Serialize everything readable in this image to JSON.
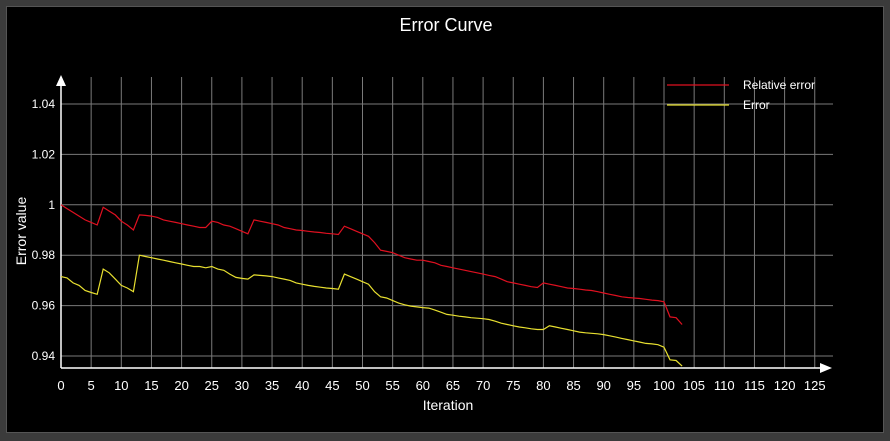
{
  "chart_data": {
    "type": "line",
    "title": "Error Curve",
    "xlabel": "Iteration",
    "ylabel": "Error value",
    "xlim": [
      0,
      128
    ],
    "ylim": [
      0.935,
      1.045
    ],
    "x_ticks": [
      "0",
      "5",
      "10",
      "15",
      "20",
      "25",
      "30",
      "35",
      "40",
      "45",
      "50",
      "55",
      "60",
      "65",
      "70",
      "75",
      "80",
      "85",
      "90",
      "95",
      "100",
      "105",
      "110",
      "115",
      "120",
      "125"
    ],
    "y_ticks": [
      "0.94",
      "0.96",
      "0.98",
      "1",
      "1.02",
      "1.04"
    ],
    "grid": true,
    "legend_position": "top-right",
    "series": [
      {
        "name": "Relative error",
        "color": "#e01020",
        "x": [
          0,
          1,
          2,
          3,
          4,
          5,
          6,
          7,
          8,
          9,
          10,
          11,
          12,
          13,
          14,
          15,
          16,
          17,
          18,
          19,
          20,
          21,
          22,
          23,
          24,
          25,
          26,
          27,
          28,
          29,
          30,
          31,
          32,
          33,
          34,
          35,
          36,
          37,
          38,
          39,
          40,
          41,
          42,
          43,
          44,
          45,
          46,
          47,
          48,
          49,
          50,
          51,
          52,
          53,
          54,
          55,
          56,
          57,
          58,
          59,
          60,
          61,
          62,
          63,
          64,
          65,
          66,
          67,
          68,
          69,
          70,
          71,
          72,
          73,
          74,
          75,
          76,
          77,
          78,
          79,
          80,
          81,
          82,
          83,
          84,
          85,
          86,
          87,
          88,
          89,
          90,
          91,
          92,
          93,
          94,
          95,
          96,
          97,
          98,
          99,
          100,
          101,
          102,
          103
        ],
        "y": [
          1.0,
          0.9985,
          0.997,
          0.9955,
          0.994,
          0.993,
          0.992,
          0.999,
          0.9975,
          0.996,
          0.9935,
          0.992,
          0.99,
          0.996,
          0.9958,
          0.9955,
          0.995,
          0.994,
          0.9935,
          0.993,
          0.9925,
          0.992,
          0.9915,
          0.991,
          0.991,
          0.9935,
          0.993,
          0.992,
          0.9915,
          0.9905,
          0.9895,
          0.9885,
          0.994,
          0.9935,
          0.993,
          0.9925,
          0.992,
          0.991,
          0.9905,
          0.99,
          0.9898,
          0.9895,
          0.9892,
          0.989,
          0.9887,
          0.9885,
          0.9882,
          0.9915,
          0.9905,
          0.9895,
          0.9885,
          0.9875,
          0.985,
          0.982,
          0.9815,
          0.981,
          0.98,
          0.979,
          0.9785,
          0.978,
          0.978,
          0.9775,
          0.977,
          0.976,
          0.9755,
          0.975,
          0.9745,
          0.974,
          0.9735,
          0.973,
          0.9725,
          0.972,
          0.9715,
          0.9705,
          0.9695,
          0.969,
          0.9685,
          0.968,
          0.9675,
          0.9672,
          0.969,
          0.9685,
          0.968,
          0.9675,
          0.967,
          0.9668,
          0.9665,
          0.9662,
          0.966,
          0.9655,
          0.965,
          0.9645,
          0.964,
          0.9635,
          0.9632,
          0.963,
          0.9628,
          0.9625,
          0.9622,
          0.962,
          0.9615,
          0.9555,
          0.9552,
          0.9525
        ]
      },
      {
        "name": "Error",
        "color": "#e8e030",
        "x": [
          0,
          1,
          2,
          3,
          4,
          5,
          6,
          7,
          8,
          9,
          10,
          11,
          12,
          13,
          14,
          15,
          16,
          17,
          18,
          19,
          20,
          21,
          22,
          23,
          24,
          25,
          26,
          27,
          28,
          29,
          30,
          31,
          32,
          33,
          34,
          35,
          36,
          37,
          38,
          39,
          40,
          41,
          42,
          43,
          44,
          45,
          46,
          47,
          48,
          49,
          50,
          51,
          52,
          53,
          54,
          55,
          56,
          57,
          58,
          59,
          60,
          61,
          62,
          63,
          64,
          65,
          66,
          67,
          68,
          69,
          70,
          71,
          72,
          73,
          74,
          75,
          76,
          77,
          78,
          79,
          80,
          81,
          82,
          83,
          84,
          85,
          86,
          87,
          88,
          89,
          90,
          91,
          92,
          93,
          94,
          95,
          96,
          97,
          98,
          99,
          100,
          101,
          102,
          103
        ],
        "y": [
          0.9715,
          0.971,
          0.969,
          0.968,
          0.966,
          0.9652,
          0.9645,
          0.9745,
          0.973,
          0.9705,
          0.968,
          0.967,
          0.9655,
          0.98,
          0.9795,
          0.979,
          0.9785,
          0.978,
          0.9775,
          0.977,
          0.9765,
          0.976,
          0.9755,
          0.9755,
          0.975,
          0.9755,
          0.9745,
          0.974,
          0.9725,
          0.9712,
          0.9708,
          0.9705,
          0.9722,
          0.972,
          0.9718,
          0.9715,
          0.971,
          0.9705,
          0.97,
          0.969,
          0.9685,
          0.968,
          0.9676,
          0.9673,
          0.967,
          0.9668,
          0.9665,
          0.9725,
          0.9715,
          0.9705,
          0.9695,
          0.9685,
          0.9655,
          0.9635,
          0.963,
          0.962,
          0.961,
          0.9603,
          0.9598,
          0.9595,
          0.9592,
          0.959,
          0.9582,
          0.9574,
          0.9565,
          0.9562,
          0.9558,
          0.9555,
          0.9552,
          0.955,
          0.9548,
          0.9545,
          0.9538,
          0.953,
          0.9525,
          0.952,
          0.9515,
          0.9512,
          0.9508,
          0.9505,
          0.9505,
          0.952,
          0.9515,
          0.951,
          0.9505,
          0.95,
          0.9495,
          0.9492,
          0.949,
          0.9488,
          0.9485,
          0.948,
          0.9475,
          0.947,
          0.9465,
          0.946,
          0.9455,
          0.945,
          0.9448,
          0.9445,
          0.9435,
          0.9385,
          0.9382,
          0.936
        ]
      }
    ]
  }
}
